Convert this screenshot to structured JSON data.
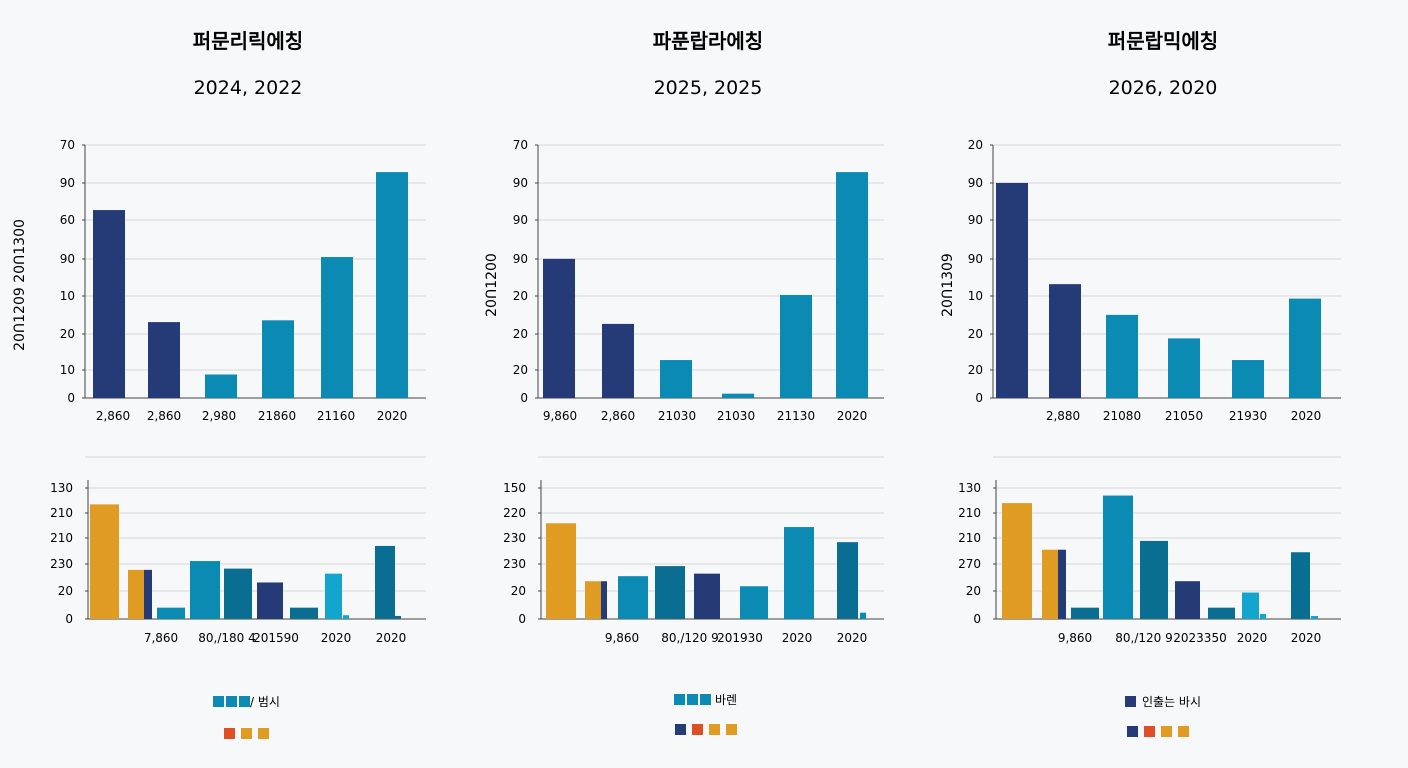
{
  "colors": {
    "navy": "#243b78",
    "teal": "#0b8ab4",
    "dteal": "#0a6e93",
    "cyan": "#12a6cf",
    "orange": "#e09b22",
    "red": "#df4f26",
    "grid": "#d4d6d9",
    "axis": "#444444"
  },
  "chart_data": [
    {
      "type": "bar",
      "title": "퍼문리릭에칭",
      "subtitle": "2024, 2022",
      "ylabel": "20ᑎ1209 20ᑎ1300",
      "top": {
        "yticks": [
          "70",
          "90",
          "60",
          "90",
          "10",
          "20",
          "10",
          "0"
        ],
        "categories": [
          "2,860",
          "2,860",
          "2,980",
          "21860",
          "21160",
          "2020"
        ],
        "values": [
          5.2,
          2.1,
          0.65,
          2.15,
          3.9,
          6.25
        ],
        "colors": [
          "navy",
          "navy",
          "teal",
          "teal",
          "teal",
          "teal"
        ]
      },
      "bottom": {
        "yticks": [
          "130",
          "210",
          "210",
          "230",
          "20",
          "0"
        ],
        "categories": [
          "7,860",
          "80,/180 4",
          "201590",
          "2020",
          "2020"
        ],
        "bars": [
          {
            "v": 4.55,
            "c": "orange"
          },
          {
            "v": 1.95,
            "c": "orange"
          },
          {
            "v": 1.95,
            "c": "navy"
          },
          {
            "v": 0.45,
            "c": "teal"
          },
          {
            "v": 2.3,
            "c": "teal"
          },
          {
            "v": 2.0,
            "c": "dteal"
          },
          {
            "v": 1.45,
            "c": "navy"
          },
          {
            "v": 0.45,
            "c": "dteal"
          },
          {
            "v": 1.8,
            "c": "cyan"
          },
          {
            "v": 0.15,
            "c": "cyan"
          },
          {
            "v": 2.9,
            "c": "dteal"
          },
          {
            "v": 0.12,
            "c": "dteal"
          }
        ]
      },
      "legend": {
        "label": "/ 범시",
        "row1": [
          "teal",
          "teal",
          "teal"
        ],
        "row2": [
          "red",
          "orange",
          "orange"
        ]
      }
    },
    {
      "type": "bar",
      "title": "파푼랍라에칭",
      "subtitle": "2025, 2025",
      "ylabel": "20ᑎ1200",
      "top": {
        "yticks": [
          "70",
          "90",
          "90",
          "90",
          "20",
          "20",
          "20",
          "0"
        ],
        "categories": [
          "9,860",
          "2,860",
          "21030",
          "21030",
          "21130",
          "2020"
        ],
        "values": [
          3.85,
          2.05,
          1.05,
          0.12,
          2.85,
          6.25
        ],
        "colors": [
          "navy",
          "navy",
          "teal",
          "teal",
          "teal",
          "teal"
        ]
      },
      "bottom": {
        "yticks": [
          "150",
          "220",
          "230",
          "230",
          "20",
          "0"
        ],
        "categories": [
          "9,860",
          "80,/120 9",
          "201930",
          "2020",
          "2020"
        ],
        "bars": [
          {
            "v": 3.8,
            "c": "orange"
          },
          {
            "v": 1.5,
            "c": "orange"
          },
          {
            "v": 1.5,
            "c": "navy"
          },
          {
            "v": 1.7,
            "c": "teal"
          },
          {
            "v": 2.1,
            "c": "dteal"
          },
          {
            "v": 1.8,
            "c": "navy"
          },
          {
            "v": 1.3,
            "c": "teal"
          },
          {
            "v": 3.65,
            "c": "teal"
          },
          {
            "v": 3.05,
            "c": "dteal"
          },
          {
            "v": 0.25,
            "c": "teal"
          }
        ]
      },
      "legend": {
        "label": "바렌",
        "row1": [
          "teal",
          "teal",
          "teal"
        ],
        "row2": [
          "navy",
          "red",
          "orange",
          "orange"
        ]
      }
    },
    {
      "type": "bar",
      "title": "퍼문랍믹에칭",
      "subtitle": "2026, 2020",
      "ylabel": "20ᑎ1309",
      "top": {
        "yticks": [
          "20",
          "90",
          "90",
          "90",
          "10",
          "20",
          "20",
          "0"
        ],
        "categories": [
          "",
          "2,880",
          "21080",
          "21050",
          "21930",
          "2020"
        ],
        "values": [
          5.95,
          3.15,
          2.3,
          1.65,
          1.05,
          2.75
        ],
        "colors": [
          "navy",
          "navy",
          "teal",
          "teal",
          "teal",
          "teal"
        ]
      },
      "bottom": {
        "yticks": [
          "130",
          "210",
          "210",
          "270",
          "20",
          "0"
        ],
        "categories": [
          "9,860",
          "80,/120 9",
          "2023350",
          "2020",
          "2020"
        ],
        "bars": [
          {
            "v": 4.6,
            "c": "orange"
          },
          {
            "v": 2.75,
            "c": "orange"
          },
          {
            "v": 2.75,
            "c": "navy"
          },
          {
            "v": 0.45,
            "c": "dteal"
          },
          {
            "v": 4.9,
            "c": "teal"
          },
          {
            "v": 3.1,
            "c": "dteal"
          },
          {
            "v": 1.5,
            "c": "navy"
          },
          {
            "v": 0.45,
            "c": "dteal"
          },
          {
            "v": 1.05,
            "c": "cyan"
          },
          {
            "v": 0.2,
            "c": "cyan"
          },
          {
            "v": 2.65,
            "c": "dteal"
          },
          {
            "v": 0.12,
            "c": "cyan"
          }
        ]
      },
      "legend": {
        "label": "인출는  바시",
        "row1": [
          "navy"
        ],
        "row2": [
          "navy",
          "red",
          "orange",
          "orange"
        ]
      }
    }
  ]
}
